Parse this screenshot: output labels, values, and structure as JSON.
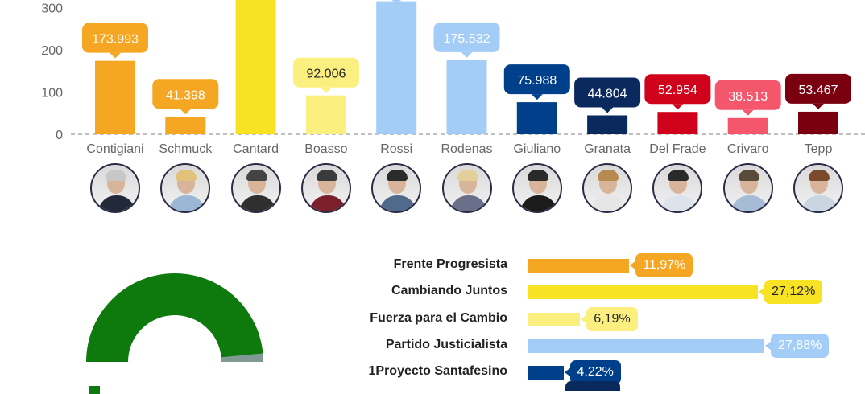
{
  "chart_data": [
    {
      "type": "bar",
      "title": "",
      "ylim": [
        0,
        320
      ],
      "yticks": [
        0,
        100,
        200,
        300
      ],
      "grid": false,
      "categories": [
        "Contigiani",
        "Schmuck",
        "Cantard",
        "Boasso",
        "Rossi",
        "Rodenas",
        "Giuliano",
        "Granata",
        "Del Frade",
        "Crivaro",
        "Tepp"
      ],
      "values": [
        173.993,
        41.398,
        330,
        92.006,
        315,
        175.532,
        75.988,
        44.804,
        52.954,
        38.513,
        53.467
      ],
      "data_labels": [
        "173.993",
        "41.398",
        "",
        "92.006",
        "",
        "175.532",
        "75.988",
        "44.804",
        "52.954",
        "38.513",
        "53.467"
      ],
      "colors": [
        "#f5a623",
        "#f5a623",
        "#f7e224",
        "#fbf07f",
        "#a3cdf7",
        "#a3cdf7",
        "#003f8a",
        "#0a2a5e",
        "#d0021b",
        "#f4566b",
        "#7a0010"
      ]
    },
    {
      "type": "bar",
      "orientation": "horizontal",
      "title": "",
      "xlim": [
        0,
        30
      ],
      "categories": [
        "Frente Progresista",
        "Cambiando Juntos",
        "Fuerza para el Cambio",
        "Partido Justicialista",
        "1Proyecto Santafesino"
      ],
      "values": [
        11.97,
        27.12,
        6.19,
        27.88,
        4.22
      ],
      "data_labels": [
        "11,97%",
        "27,12%",
        "6,19%",
        "27,88%",
        "4,22%"
      ],
      "colors": [
        "#f5a623",
        "#f7e224",
        "#fbf07f",
        "#a3cdf7",
        "#003f8a"
      ],
      "label_text_colors": [
        "#ffffff",
        "#222222",
        "#222222",
        "#ffffff",
        "#ffffff"
      ]
    },
    {
      "type": "pie",
      "variant": "half-donut",
      "values": [
        97,
        3
      ],
      "colors": [
        "#0e7a0d",
        "#7f9a94"
      ]
    }
  ],
  "photos": [
    {
      "hair": "#c8c8c8",
      "body": "#222a3a"
    },
    {
      "hair": "#e0c27a",
      "body": "#9bb7d4"
    },
    {
      "hair": "#444444",
      "body": "#2f2f2f"
    },
    {
      "hair": "#3b3b3b",
      "body": "#7a1f2b"
    },
    {
      "hair": "#2b2b2b",
      "body": "#4f6a8a"
    },
    {
      "hair": "#e2cf9a",
      "body": "#6a6f8a"
    },
    {
      "hair": "#2a2a2a",
      "body": "#1b1b1b"
    },
    {
      "hair": "#b78a4f",
      "body": "#e6e6e6"
    },
    {
      "hair": "#2a2a2a",
      "body": "#dde3ea"
    },
    {
      "hair": "#5a4a3a",
      "body": "#a6bcd6"
    },
    {
      "hair": "#7a4a2a",
      "body": "#c9d6e2"
    }
  ]
}
